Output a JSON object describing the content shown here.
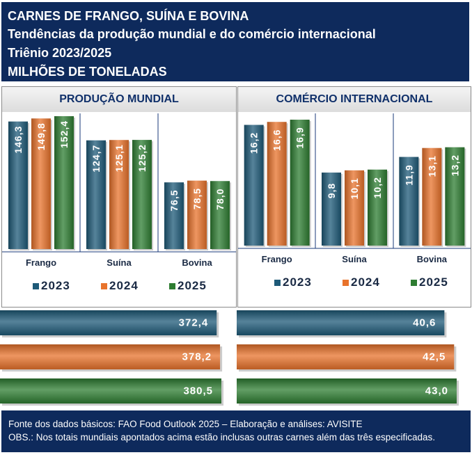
{
  "header": {
    "line1": "CARNES DE FRANGO, SUÍNA E BOVINA",
    "line2": "Tendências da produção mundial e do comércio internacional",
    "line3": "Triênio 2023/2025",
    "line4": "MILHÕES DE TONELADAS"
  },
  "colors": {
    "2023": "#1e5a78",
    "2024": "#e8732c",
    "2025": "#2e7d32",
    "header_bg": "#0e2a5c"
  },
  "chart_data": [
    {
      "type": "bar",
      "title": "PRODUÇÃO MUNDIAL",
      "categories": [
        "Frango",
        "Suína",
        "Bovina"
      ],
      "series": [
        {
          "name": "2023",
          "values": [
            146.3,
            124.7,
            76.5
          ],
          "labels": [
            "146,3",
            "124,7",
            "76,5"
          ]
        },
        {
          "name": "2024",
          "values": [
            149.8,
            125.1,
            78.5
          ],
          "labels": [
            "149,8",
            "125,1",
            "78,5"
          ]
        },
        {
          "name": "2025",
          "values": [
            152.4,
            125.2,
            78.0
          ],
          "labels": [
            "152,4",
            "125,2",
            "78,0"
          ]
        }
      ],
      "ylim": [
        0,
        152.4
      ],
      "legend_position": "bottom",
      "totals": {
        "type": "bar",
        "orientation": "horizontal",
        "categories": [
          "2023",
          "2024",
          "2025"
        ],
        "values": [
          372.4,
          378.2,
          380.5
        ],
        "labels": [
          "372,4",
          "378,2",
          "380,5"
        ]
      }
    },
    {
      "type": "bar",
      "title": "COMÉRCIO INTERNACIONAL",
      "categories": [
        "Frango",
        "Suína",
        "Bovina"
      ],
      "series": [
        {
          "name": "2023",
          "values": [
            16.2,
            9.8,
            11.9
          ],
          "labels": [
            "16,2",
            "9,8",
            "11,9"
          ]
        },
        {
          "name": "2024",
          "values": [
            16.6,
            10.1,
            13.1
          ],
          "labels": [
            "16,6",
            "10,1",
            "13,1"
          ]
        },
        {
          "name": "2025",
          "values": [
            16.9,
            10.2,
            13.2
          ],
          "labels": [
            "16,9",
            "10,2",
            "13,2"
          ]
        }
      ],
      "ylim": [
        0,
        16.9
      ],
      "legend_position": "bottom",
      "totals": {
        "type": "bar",
        "orientation": "horizontal",
        "categories": [
          "2023",
          "2024",
          "2025"
        ],
        "values": [
          40.6,
          42.5,
          43.0
        ],
        "labels": [
          "40,6",
          "42,5",
          "43,0"
        ]
      }
    }
  ],
  "footer": {
    "source": "Fonte dos dados básicos: FAO Food Outlook 2025 – Elaboração e análises: AVISITE",
    "note": "OBS.: Nos totais mundiais apontados acima estão inclusas outras carnes além das três especificadas."
  }
}
